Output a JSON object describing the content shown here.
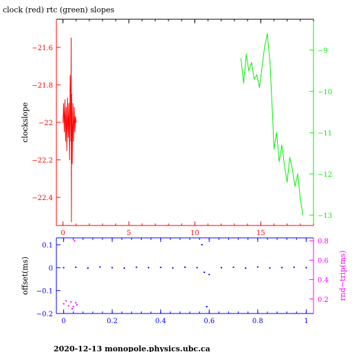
{
  "title": "clock (red) rtc (green) slopes",
  "footer": "2020-12-13 monopole.physics.ubc.ca",
  "colors": {
    "red": "#ff0000",
    "green": "#00ee00",
    "blue": "#0000ff",
    "magenta": "#ff00ff",
    "black": "#000000"
  },
  "chart_data": [
    {
      "type": "line",
      "ylabel": "clockslope",
      "xlim": [
        -0.5,
        19
      ],
      "ylim": [
        -22.55,
        -21.45
      ],
      "x_ticks": [
        0,
        5,
        10,
        15
      ],
      "x_tick_labels": [
        "0",
        "5",
        "10",
        "15"
      ],
      "y_ticks": [
        -21.6,
        -21.8,
        -22,
        -22.2,
        -22.4
      ],
      "y_tick_labels": [
        "−21.6",
        "−21.8",
        "−22",
        "−22.2",
        "−22.4"
      ],
      "y2lim": [
        -13.25,
        -8.25
      ],
      "y2_ticks": [
        -9,
        -10,
        -11,
        -12,
        -13
      ],
      "y2_tick_labels": [
        "−9",
        "−10",
        "−11",
        "−12",
        "−13"
      ],
      "series": [
        {
          "color": "red",
          "axis": "left",
          "x": [
            0.0,
            0.05,
            0.1,
            0.15,
            0.2,
            0.25,
            0.3,
            0.35,
            0.4,
            0.45,
            0.5,
            0.55,
            0.6,
            0.62,
            0.64,
            0.66,
            0.7,
            0.75,
            0.8,
            0.85,
            0.9,
            0.95,
            1.0
          ],
          "y": [
            -22.0,
            -21.9,
            -22.05,
            -21.88,
            -22.1,
            -21.92,
            -22.15,
            -21.87,
            -22.08,
            -21.9,
            -22.2,
            -21.75,
            -22.1,
            -21.55,
            -22.53,
            -21.85,
            -22.22,
            -21.9,
            -22.1,
            -21.92,
            -22.05,
            -21.97,
            -22.0
          ]
        },
        {
          "color": "green",
          "axis": "right",
          "x": [
            13.5,
            13.7,
            13.9,
            14.1,
            14.3,
            14.5,
            14.7,
            14.9,
            15.1,
            15.3,
            15.5,
            15.7,
            15.9,
            16.0,
            16.2,
            16.4,
            16.6,
            16.8,
            17.0,
            17.2,
            17.4,
            17.6,
            17.8,
            18.0,
            18.2
          ],
          "y": [
            -9.2,
            -9.8,
            -9.1,
            -9.5,
            -9.3,
            -9.7,
            -9.6,
            -9.9,
            -9.4,
            -8.9,
            -8.6,
            -9.3,
            -10.6,
            -11.4,
            -11.0,
            -11.7,
            -11.3,
            -11.8,
            -12.2,
            -11.6,
            -11.9,
            -12.3,
            -12.0,
            -12.6,
            -13.0
          ]
        }
      ]
    },
    {
      "type": "scatter",
      "ylabel": "offset(ms)",
      "y2label": "rnd−trip(ms)",
      "xlim": [
        -0.03,
        1.03
      ],
      "ylim": [
        -0.2,
        0.13
      ],
      "x_ticks": [
        0,
        0.2,
        0.4,
        0.6,
        0.8,
        1
      ],
      "x_tick_labels": [
        "0",
        "0.2",
        "0.4",
        "0.6",
        "0.8",
        "1"
      ],
      "y_ticks": [
        0.1,
        0,
        -0.1,
        -0.2
      ],
      "y_tick_labels": [
        "0.1",
        "0",
        "−0.1",
        "−0.2"
      ],
      "y2lim": [
        0.05,
        0.83
      ],
      "y2_ticks": [
        0.8,
        0.6,
        0.4,
        0.2
      ],
      "y2_tick_labels": [
        "0.8",
        "0.6",
        "0.4",
        "0.2"
      ],
      "series": [
        {
          "color": "blue",
          "axis": "left",
          "x": [
            0.0,
            0.05,
            0.1,
            0.15,
            0.2,
            0.25,
            0.3,
            0.35,
            0.4,
            0.45,
            0.5,
            0.55,
            0.57,
            0.58,
            0.59,
            0.6,
            0.65,
            0.7,
            0.75,
            0.8,
            0.85,
            0.9,
            0.95,
            1.0
          ],
          "y": [
            0.0,
            0.002,
            -0.002,
            0.003,
            0.0,
            -0.002,
            0.002,
            0.0,
            0.001,
            -0.001,
            0.002,
            0.0,
            0.1,
            -0.02,
            -0.17,
            -0.03,
            0.0,
            0.002,
            -0.002,
            0.003,
            -0.001,
            0.0,
            0.002,
            0.0
          ]
        },
        {
          "color": "magenta",
          "axis": "right",
          "x": [
            0.0,
            0.01,
            0.02,
            0.03,
            0.035,
            0.04,
            0.045,
            0.05,
            0.055
          ],
          "y": [
            0.15,
            0.18,
            0.13,
            0.17,
            0.1,
            0.12,
            0.8,
            0.16,
            0.14
          ]
        }
      ]
    }
  ]
}
